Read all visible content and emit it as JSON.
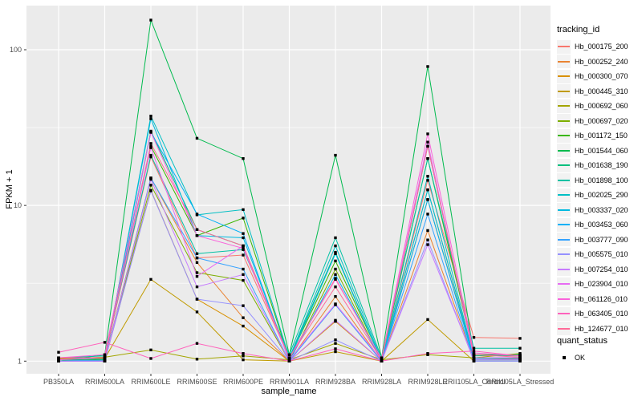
{
  "chart_data": {
    "type": "line",
    "title": "",
    "xlabel": "sample_name",
    "ylabel": "FPKM + 1",
    "x_categories": [
      "PB350LA",
      "RRIM600LA",
      "RRIM600LE",
      "RRIM600SE",
      "RRIM600PE",
      "RRIM901LA",
      "RRIM928BA",
      "RRIM928LA",
      "RRIM928LE",
      "RRII105LA_Control",
      "RRII105LA_Stressed"
    ],
    "y_scale": "log10",
    "y_ticks": [
      1,
      10,
      100
    ],
    "y_tick_labels": [
      "1",
      "10",
      "100"
    ],
    "y_minor_ticks": [
      3.162,
      31.62
    ],
    "ylim": [
      0.83,
      192
    ],
    "panel_bg": "#EBEBEB",
    "grid_color": "#FFFFFF",
    "tick_label_color": "#4D4D4D",
    "point_marker": "black-square",
    "series": [
      {
        "name": "Hb_000175_200",
        "color": "#F8766D",
        "values": [
          1.04,
          1.06,
          20.5,
          4.6,
          4.8,
          1.05,
          3.4,
          1.02,
          14.5,
          1.42,
          1.4
        ]
      },
      {
        "name": "Hb_000252_240",
        "color": "#EA8331",
        "values": [
          1.0,
          1.02,
          15.0,
          4.3,
          1.9,
          1.0,
          2.6,
          1.0,
          6.9,
          1.02,
          1.02
        ]
      },
      {
        "name": "Hb_000300_070",
        "color": "#D89000",
        "values": [
          1.0,
          1.0,
          12.5,
          2.5,
          1.68,
          1.0,
          1.8,
          1.0,
          10.9,
          1.04,
          1.03
        ]
      },
      {
        "name": "Hb_000445_310",
        "color": "#C09B00",
        "values": [
          1.0,
          1.04,
          3.35,
          2.07,
          1.02,
          1.0,
          1.15,
          1.0,
          1.85,
          1.0,
          1.0
        ]
      },
      {
        "name": "Hb_000692_060",
        "color": "#A3A500",
        "values": [
          1.03,
          1.06,
          1.18,
          1.03,
          1.08,
          1.02,
          1.3,
          1.02,
          1.1,
          1.05,
          1.12
        ]
      },
      {
        "name": "Hb_000697_020",
        "color": "#7CAE00",
        "values": [
          1.0,
          1.0,
          13.5,
          3.7,
          3.3,
          1.0,
          3.9,
          1.0,
          12.6,
          1.05,
          1.05
        ]
      },
      {
        "name": "Hb_001172_150",
        "color": "#39B600",
        "values": [
          1.02,
          1.03,
          24.0,
          6.4,
          8.3,
          1.04,
          4.4,
          1.02,
          20.0,
          1.1,
          1.1
        ]
      },
      {
        "name": "Hb_001544_060",
        "color": "#00BB4E",
        "values": [
          1.0,
          1.1,
          155,
          27,
          20,
          1.1,
          21,
          1.05,
          78,
          1.1,
          1.08
        ]
      },
      {
        "name": "Hb_001638_190",
        "color": "#00BF7D",
        "values": [
          1.0,
          1.05,
          30,
          7.0,
          5.5,
          1.05,
          5.0,
          1.0,
          24,
          1.08,
          1.1
        ]
      },
      {
        "name": "Hb_001898_100",
        "color": "#00C1A3",
        "values": [
          1.05,
          1.08,
          21,
          4.9,
          5.2,
          1.1,
          6.2,
          1.05,
          20,
          1.21,
          1.21
        ]
      },
      {
        "name": "Hb_002025_290",
        "color": "#00BFC4",
        "values": [
          1.0,
          1.02,
          37.5,
          8.7,
          9.4,
          1.05,
          5.5,
          1.02,
          15.4,
          1.05,
          1.05
        ]
      },
      {
        "name": "Hb_003337_020",
        "color": "#00BAE0",
        "values": [
          1.0,
          1.02,
          36,
          6.4,
          6.2,
          1.02,
          4.9,
          1.0,
          12.6,
          1.04,
          1.04
        ]
      },
      {
        "name": "Hb_003453_060",
        "color": "#00B0F6",
        "values": [
          1.0,
          1.0,
          29.5,
          8.8,
          6.6,
          1.0,
          3.6,
          1.0,
          10.9,
          1.02,
          1.02
        ]
      },
      {
        "name": "Hb_003777_090",
        "color": "#35A2FF",
        "values": [
          1.0,
          1.0,
          15.0,
          4.6,
          3.9,
          1.0,
          2.3,
          1.0,
          8.8,
          1.0,
          1.0
        ]
      },
      {
        "name": "Hb_005575_010",
        "color": "#9590FF",
        "values": [
          1.0,
          1.0,
          12.4,
          2.5,
          2.27,
          1.0,
          1.37,
          1.0,
          6.0,
          1.0,
          1.0
        ]
      },
      {
        "name": "Hb_007254_010",
        "color": "#C77CFF",
        "values": [
          1.0,
          1.0,
          14.7,
          3.0,
          3.6,
          1.0,
          1.83,
          1.0,
          5.6,
          1.02,
          1.02
        ]
      },
      {
        "name": "Hb_023904_010",
        "color": "#E76BF3",
        "values": [
          1.02,
          1.05,
          23.5,
          3.5,
          5.5,
          1.02,
          2.33,
          1.02,
          25.5,
          1.05,
          1.05
        ]
      },
      {
        "name": "Hb_061126_010",
        "color": "#FA62DB",
        "values": [
          1.05,
          1.1,
          29.5,
          6.4,
          5.3,
          1.05,
          3.35,
          1.04,
          28.8,
          1.13,
          1.08
        ]
      },
      {
        "name": "Hb_063405_010",
        "color": "#FF62BC",
        "values": [
          1.14,
          1.32,
          1.04,
          1.3,
          1.12,
          1.0,
          1.2,
          1.0,
          1.12,
          1.16,
          1.08
        ]
      },
      {
        "name": "Hb_124677_010",
        "color": "#FF6A98",
        "values": [
          1.05,
          1.05,
          25.0,
          7.0,
          5.5,
          1.05,
          3.0,
          1.02,
          24.0,
          1.1,
          1.06
        ]
      }
    ],
    "legend": {
      "title": "tracking_id",
      "position": "right"
    },
    "legend2": {
      "title": "quant_status",
      "items": [
        {
          "label": "OK",
          "marker": "black-square"
        }
      ]
    }
  }
}
